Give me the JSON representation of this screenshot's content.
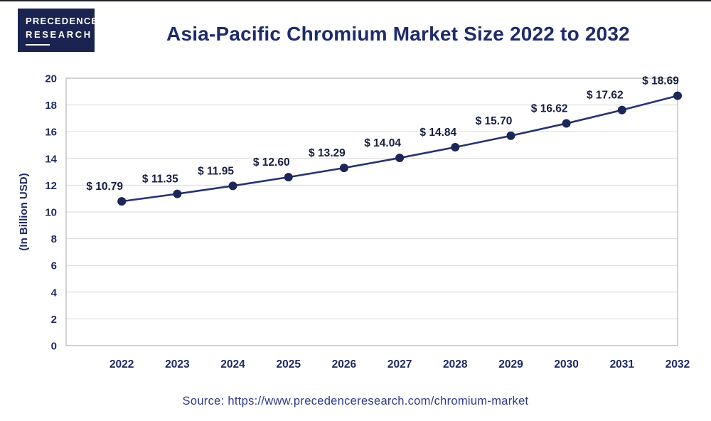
{
  "logo": {
    "line1": "PRECEDENCE",
    "line2": "RESEARCH"
  },
  "title": "Asia-Pacific Chromium Market Size 2022 to 2032",
  "source": "Source: https://www.precedenceresearch.com/chromium-market",
  "chart_data": {
    "type": "line",
    "title": "Asia-Pacific Chromium Market Size 2022 to 2032",
    "categories": [
      "2022",
      "2023",
      "2024",
      "2025",
      "2026",
      "2027",
      "2028",
      "2029",
      "2030",
      "2031",
      "2032"
    ],
    "values": [
      10.79,
      11.35,
      11.95,
      12.6,
      13.29,
      14.04,
      14.84,
      15.7,
      16.62,
      17.62,
      18.69
    ],
    "labels": [
      "$ 10.79",
      "$ 11.35",
      "$ 11.95",
      "$ 12.60",
      "$ 13.29",
      "$ 14.04",
      "$ 14.84",
      "$ 15.70",
      "$ 16.62",
      "$ 17.62",
      "$ 18.69"
    ],
    "xlabel": "",
    "ylabel": "(In Billion USD)",
    "ylim": [
      0,
      20
    ],
    "ytick_step": 2,
    "grid": true,
    "legend": "none",
    "colors": {
      "line": "#26336e",
      "marker": "#1c2757",
      "label": "#161e42",
      "axis_text": "#1e2a63",
      "grid": "#d8d8d8",
      "border": "#b5b5b5",
      "title": "#1e2b6d",
      "source": "#2b3a8c",
      "logo_bg": "#1b2350"
    }
  }
}
